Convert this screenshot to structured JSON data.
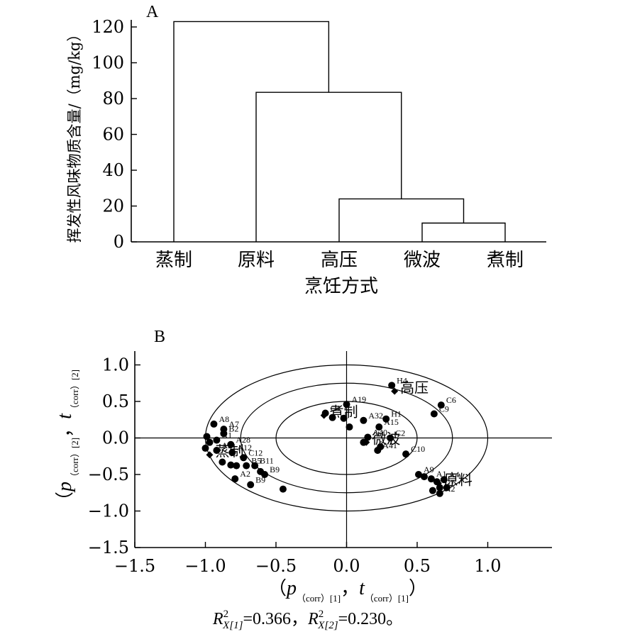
{
  "chart_data": [
    {
      "type": "dendrogram",
      "panel_label": "A",
      "title": "",
      "xlabel": "烹饪方式",
      "ylabel": "挥发性风味物质含量/（mg/kg）",
      "ylim": [
        0,
        120
      ],
      "yticks": [
        "0",
        "20",
        "40",
        "60",
        "80",
        "100",
        "120"
      ],
      "categories": [
        "蒸制",
        "原料",
        "高压",
        "微波",
        "煮制"
      ],
      "merges": [
        {
          "left": 3,
          "right": 4,
          "height": 10.5
        },
        {
          "left": 2,
          "right": "微波+煮制",
          "height": 24
        },
        {
          "left": 1,
          "right": "高压+微波+煮制",
          "height": 83.5
        },
        {
          "left": 0,
          "right": "原料+高压+微波+煮制",
          "height": 123
        }
      ]
    },
    {
      "type": "scatter",
      "panel_label": "B",
      "title": "",
      "xlim": [
        -1.5,
        1.4
      ],
      "ylim": [
        -1.5,
        1.4
      ],
      "xticks": [
        "−1.5",
        "−1.0",
        "−0.5",
        "0.0",
        "0.5",
        "1.0"
      ],
      "yticks": [
        "−1.5",
        "−1.0",
        "−0.5",
        "0.0",
        "0.5",
        "1.0"
      ],
      "xlabel_parts": {
        "open": "（",
        "p": "p",
        "sub1": "（corr）[1]",
        "comma": "，",
        "t": "t",
        "sub2": "（corr）[1]",
        "close": "）"
      },
      "ylabel_parts": {
        "open": "（",
        "p": "p",
        "sub1": "（corr）[2]",
        "comma": "，",
        "t": "t",
        "sub2": "（corr）[2]"
      },
      "formula": {
        "R": "R",
        "sup": "2",
        "sub1": "X[1]",
        "eq1": "=0.366，",
        "sub2": "X[2]",
        "eq2": "=0.230。"
      },
      "ellipses": [
        {
          "rx": 0.5,
          "ry": 0.5
        },
        {
          "rx": 0.75,
          "ry": 0.75
        },
        {
          "rx": 1.0,
          "ry": 1.0
        }
      ],
      "groups": [
        {
          "label": "高压",
          "x": 0.34,
          "y": 0.64
        },
        {
          "label": "蒸制",
          "x": -0.97,
          "y": -0.23
        },
        {
          "label": "煮制",
          "x": -0.16,
          "y": 0.31
        },
        {
          "label": "微波",
          "x": 0.14,
          "y": -0.06
        },
        {
          "label": "原料",
          "x": 0.65,
          "y": -0.62
        }
      ],
      "points": [
        {
          "x": 0.32,
          "y": 0.72,
          "label": "H4"
        },
        {
          "x": 0.67,
          "y": 0.45,
          "label": "C6"
        },
        {
          "x": 0.62,
          "y": 0.33,
          "label": "C9"
        },
        {
          "x": 0.0,
          "y": 0.46,
          "label": "A19"
        },
        {
          "x": -0.15,
          "y": 0.34,
          "label": "C4"
        },
        {
          "x": -0.1,
          "y": 0.28,
          "label": ""
        },
        {
          "x": -0.02,
          "y": 0.27,
          "label": ""
        },
        {
          "x": 0.12,
          "y": 0.24,
          "label": "A32"
        },
        {
          "x": 0.28,
          "y": 0.26,
          "label": "H1"
        },
        {
          "x": 0.23,
          "y": 0.15,
          "label": "A15"
        },
        {
          "x": 0.02,
          "y": 0.15,
          "label": ""
        },
        {
          "x": 0.15,
          "y": 0.01,
          "label": "A40"
        },
        {
          "x": 0.31,
          "y": 0.0,
          "label": "C2"
        },
        {
          "x": 0.24,
          "y": -0.12,
          "label": ""
        },
        {
          "x": 0.12,
          "y": -0.06,
          "label": ""
        },
        {
          "x": 0.42,
          "y": -0.22,
          "label": "C10"
        },
        {
          "x": 0.22,
          "y": -0.17,
          "label": "A41"
        },
        {
          "x": 0.51,
          "y": -0.5,
          "label": "A9"
        },
        {
          "x": 0.55,
          "y": -0.53,
          "label": ""
        },
        {
          "x": 0.6,
          "y": -0.56,
          "label": "A1"
        },
        {
          "x": 0.69,
          "y": -0.57,
          "label": "A4"
        },
        {
          "x": 0.64,
          "y": -0.6,
          "label": ""
        },
        {
          "x": 0.71,
          "y": -0.68,
          "label": ""
        },
        {
          "x": 0.61,
          "y": -0.72,
          "label": ""
        },
        {
          "x": 0.66,
          "y": -0.76,
          "label": "A2"
        },
        {
          "x": 0.66,
          "y": -0.68,
          "label": "C7"
        },
        {
          "x": -0.94,
          "y": 0.19,
          "label": "A8"
        },
        {
          "x": -0.87,
          "y": 0.12,
          "label": "A7"
        },
        {
          "x": -0.87,
          "y": 0.06,
          "label": "B2"
        },
        {
          "x": -0.99,
          "y": 0.02,
          "label": ""
        },
        {
          "x": -0.92,
          "y": -0.03,
          "label": "A1"
        },
        {
          "x": -0.97,
          "y": -0.06,
          "label": ""
        },
        {
          "x": -1.0,
          "y": -0.14,
          "label": ""
        },
        {
          "x": -0.92,
          "y": -0.17,
          "label": "A2"
        },
        {
          "x": -0.82,
          "y": -0.09,
          "label": "A28"
        },
        {
          "x": -0.81,
          "y": -0.2,
          "label": "A12"
        },
        {
          "x": -0.73,
          "y": -0.27,
          "label": "C12"
        },
        {
          "x": -0.88,
          "y": -0.33,
          "label": ""
        },
        {
          "x": -0.82,
          "y": -0.37,
          "label": ""
        },
        {
          "x": -0.78,
          "y": -0.38,
          "label": ""
        },
        {
          "x": -0.71,
          "y": -0.38,
          "label": "B5"
        },
        {
          "x": -0.65,
          "y": -0.38,
          "label": "B11"
        },
        {
          "x": -0.61,
          "y": -0.46,
          "label": ""
        },
        {
          "x": -0.58,
          "y": -0.5,
          "label": "B9"
        },
        {
          "x": -0.79,
          "y": -0.56,
          "label": "A2"
        },
        {
          "x": -0.68,
          "y": -0.64,
          "label": "B9"
        },
        {
          "x": -0.45,
          "y": -0.7,
          "label": ""
        }
      ]
    }
  ]
}
